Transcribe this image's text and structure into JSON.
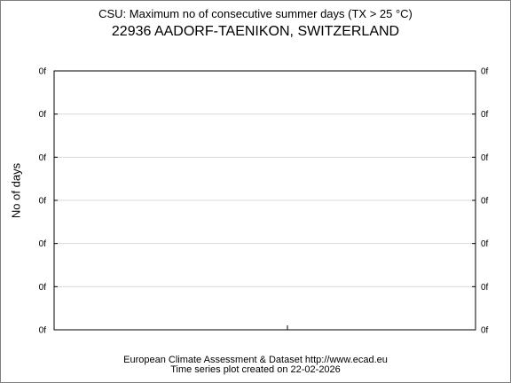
{
  "chart_data": {
    "type": "line",
    "title": "CSU: Maximum no of consecutive summer days (TX > 25 °C)",
    "subtitle": "22936 AADORF-TAENIKON, SWITZERLAND",
    "ylabel": "No of days",
    "xlabel": "",
    "y_tick_labels": [
      "0f",
      "0f",
      "0f",
      "0f",
      "0f",
      "0f",
      "0f"
    ],
    "y_ticks_both_sides": true,
    "grid": true,
    "series": [],
    "colors": {
      "grid": "#d9d9d9",
      "axis": "#000000",
      "frame": "#7f7f7f"
    }
  },
  "footer": {
    "line1": "European Climate Assessment & Dataset  http://www.ecad.eu",
    "line2": "Time series plot created on 22-02-2026"
  }
}
